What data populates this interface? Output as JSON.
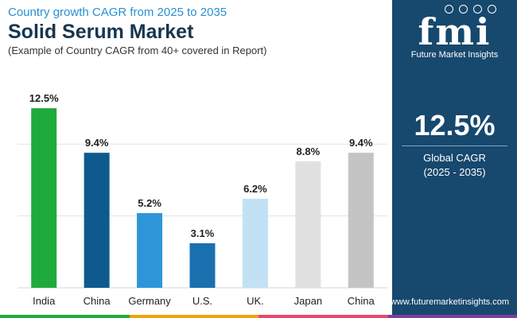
{
  "header": {
    "kicker": "Country growth CAGR from 2025 to 2035",
    "title": "Solid Serum Market",
    "subtitle": "(Example of Country CAGR from 40+ covered in Report)"
  },
  "chart_data": {
    "type": "bar",
    "categories": [
      "India",
      "China",
      "Germany",
      "U.S.",
      "UK.",
      "Japan",
      "China"
    ],
    "values": [
      12.5,
      9.4,
      5.2,
      3.1,
      6.2,
      8.8,
      9.4
    ],
    "data_labels": [
      "12.5%",
      "9.4%",
      "5.2%",
      "3.1%",
      "6.2%",
      "8.8%",
      "9.4%"
    ],
    "bar_colors": [
      "#1fab3b",
      "#0e5a8e",
      "#2e96d8",
      "#1a6fae",
      "#c3e1f5",
      "#e1e1e1",
      "#c4c4c4"
    ],
    "ylim": [
      0,
      14.5
    ],
    "gridlines": [
      5,
      10
    ],
    "grid": true,
    "legend": "none"
  },
  "side_panel": {
    "logo_mark": "fmi",
    "logo_text": "Future Market Insights",
    "kpi_value": "12.5%",
    "kpi_label": "Global CAGR",
    "kpi_period": "(2025 - 2035)"
  },
  "footer": {
    "website": "www.futuremarketinsights.com",
    "strip_colors": [
      "#1fab3b",
      "#f0a30a",
      "#e8476f",
      "#7a3fa0"
    ]
  },
  "colors": {
    "title": "#17364f",
    "kicker": "#2a8fd4",
    "panel": "#17486d",
    "grid": "#e2e2e2"
  }
}
